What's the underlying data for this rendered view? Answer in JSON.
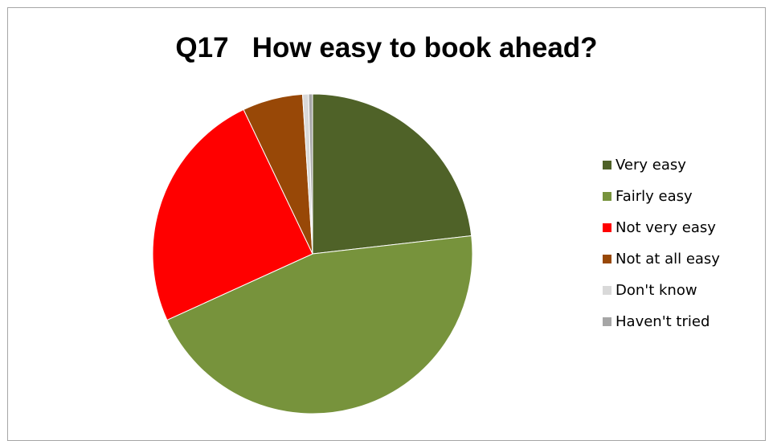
{
  "chart_data": {
    "type": "pie",
    "title": "Q17   How easy to book ahead?",
    "categories": [
      "Very easy",
      "Fairly easy",
      "Not very easy",
      "Not at all easy",
      "Don't know",
      "Haven't tried"
    ],
    "values": [
      23.2,
      45.0,
      24.7,
      6.1,
      0.6,
      0.4
    ],
    "colors": [
      "#4f6228",
      "#77933c",
      "#ff0000",
      "#984807",
      "#d9d9d9",
      "#a6a6a6"
    ],
    "legend_position": "right"
  }
}
